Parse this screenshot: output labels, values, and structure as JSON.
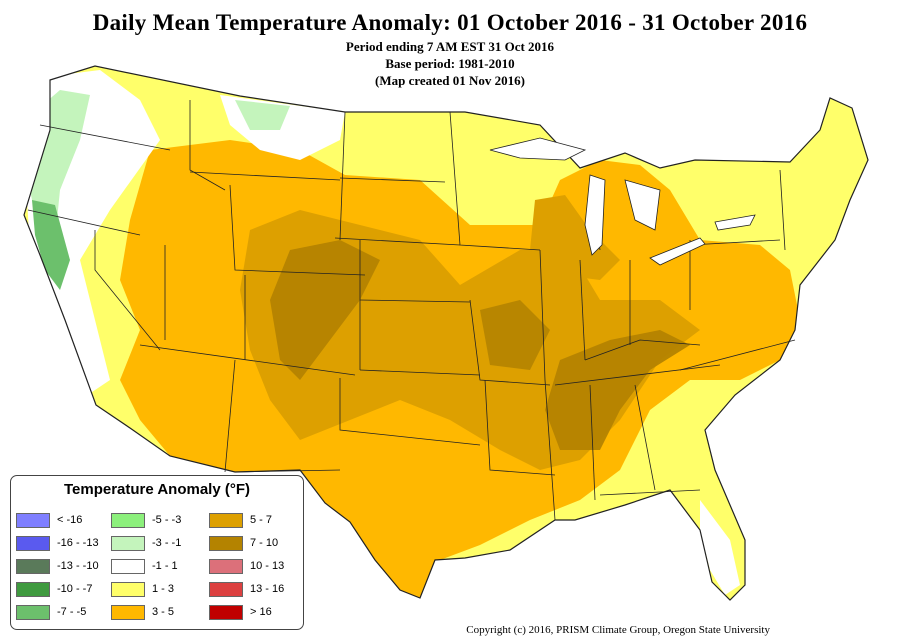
{
  "header": {
    "title": "Daily Mean Temperature Anomaly: 01 October 2016 - 31 October 2016",
    "subtitle_1": "Period ending 7 AM EST 31 Oct 2016",
    "subtitle_2": "Base period: 1981-2010",
    "subtitle_3": "(Map created 01 Nov 2016)"
  },
  "legend": {
    "title": "Temperature Anomaly (°F)",
    "items": [
      {
        "label": "< -16",
        "color": "#7f7fff"
      },
      {
        "label": "-16 - -13",
        "color": "#5a5aef"
      },
      {
        "label": "-13 - -10",
        "color": "#5a7a5a"
      },
      {
        "label": "-10 - -7",
        "color": "#3f9a3f"
      },
      {
        "label": "-7 - -5",
        "color": "#6cc06c"
      },
      {
        "label": "-5 - -3",
        "color": "#8cf07c"
      },
      {
        "label": "-3 - -1",
        "color": "#c4f4bc"
      },
      {
        "label": "-1 - 1",
        "color": "#ffffff"
      },
      {
        "label": "1 - 3",
        "color": "#ffff6a"
      },
      {
        "label": "3 - 5",
        "color": "#ffb800"
      },
      {
        "label": "5 - 7",
        "color": "#dda000"
      },
      {
        "label": "7 - 10",
        "color": "#b48300"
      },
      {
        "label": "10 - 13",
        "color": "#dc707a"
      },
      {
        "label": "13 - 16",
        "color": "#dc4040"
      },
      {
        "label": "> 16",
        "color": "#c00000"
      }
    ]
  },
  "footer": {
    "copyright": "Copyright (c) 2016, PRISM Climate Group, Oregon State University"
  }
}
